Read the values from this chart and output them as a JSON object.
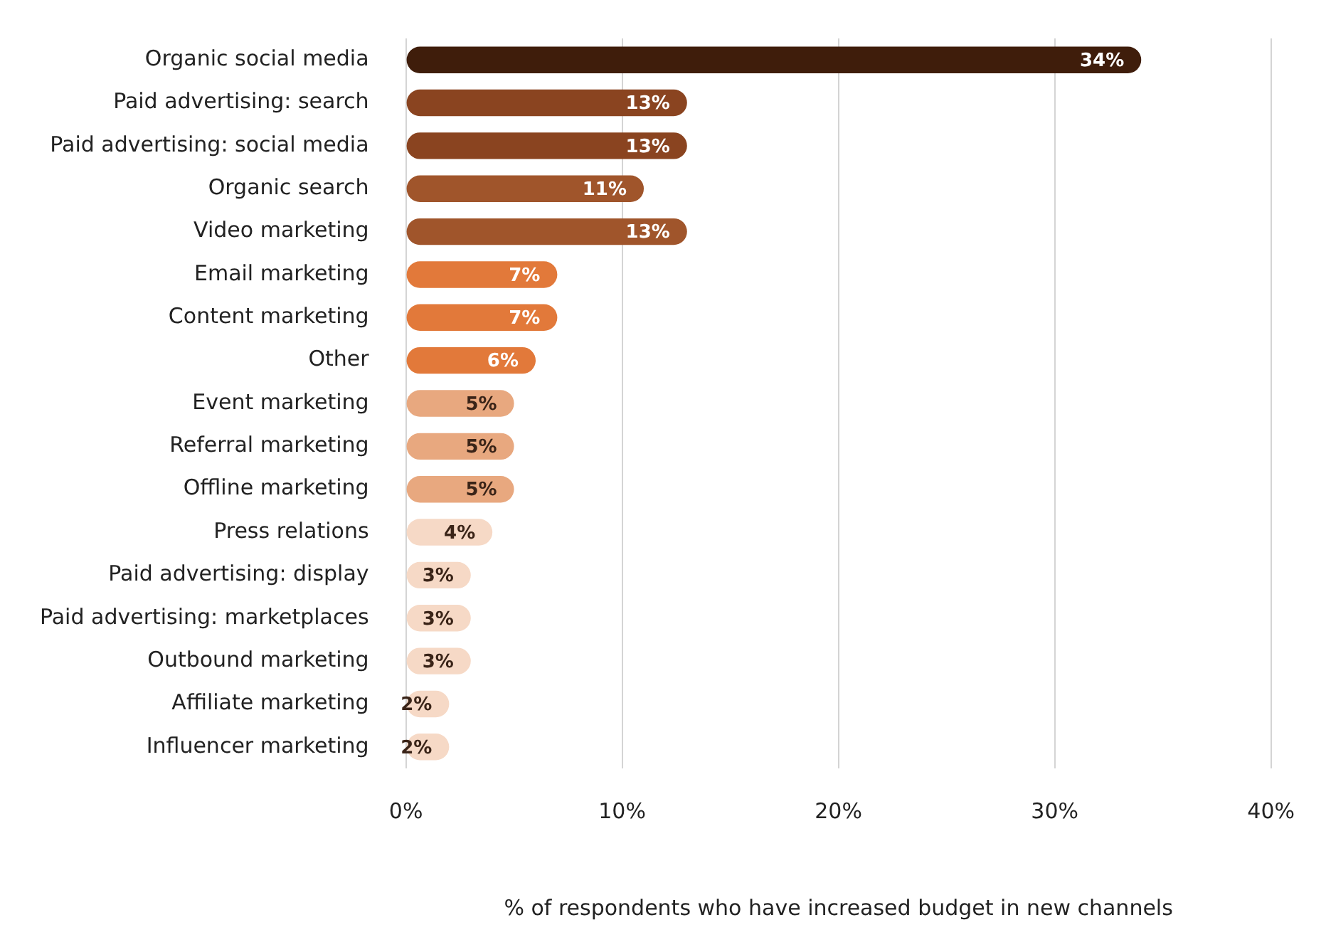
{
  "chart_data": {
    "type": "bar",
    "orientation": "horizontal",
    "xlabel": "% of respondents who have increased budget in new channels",
    "categories": [
      "Organic social media",
      "Paid advertising: search",
      "Paid advertising: social media",
      "Organic search",
      "Video marketing",
      "Email marketing",
      "Content marketing",
      "Other",
      "Event marketing",
      "Referral marketing",
      "Offline marketing",
      "Press relations",
      "Paid advertising: display",
      "Paid advertising: marketplaces",
      "Outbound marketing",
      "Affiliate marketing",
      "Influencer marketing"
    ],
    "values": [
      34,
      13,
      13,
      11,
      13,
      7,
      7,
      6,
      5,
      5,
      5,
      4,
      3,
      3,
      3,
      2,
      2
    ],
    "value_labels": [
      "34%",
      "13%",
      "13%",
      "11%",
      "13%",
      "7%",
      "7%",
      "6%",
      "5%",
      "5%",
      "5%",
      "4%",
      "3%",
      "3%",
      "3%",
      "2%",
      "2%"
    ],
    "colors": [
      "#3f1d0b",
      "#8a4420",
      "#8a4420",
      "#a0552b",
      "#a0552b",
      "#e2793a",
      "#e2793a",
      "#e2793a",
      "#e8a87f",
      "#e8a87f",
      "#e8a87f",
      "#f6d9c6",
      "#f6d9c6",
      "#f6d9c6",
      "#f6d9c6",
      "#f6d9c6",
      "#f6d9c6"
    ],
    "xlim": [
      0,
      40
    ],
    "xticks": [
      {
        "value": 0,
        "label": "0%"
      },
      {
        "value": 10,
        "label": "10%"
      },
      {
        "value": 20,
        "label": "20%"
      },
      {
        "value": 30,
        "label": "30%"
      },
      {
        "value": 40,
        "label": "40%"
      }
    ],
    "grid": "x"
  }
}
